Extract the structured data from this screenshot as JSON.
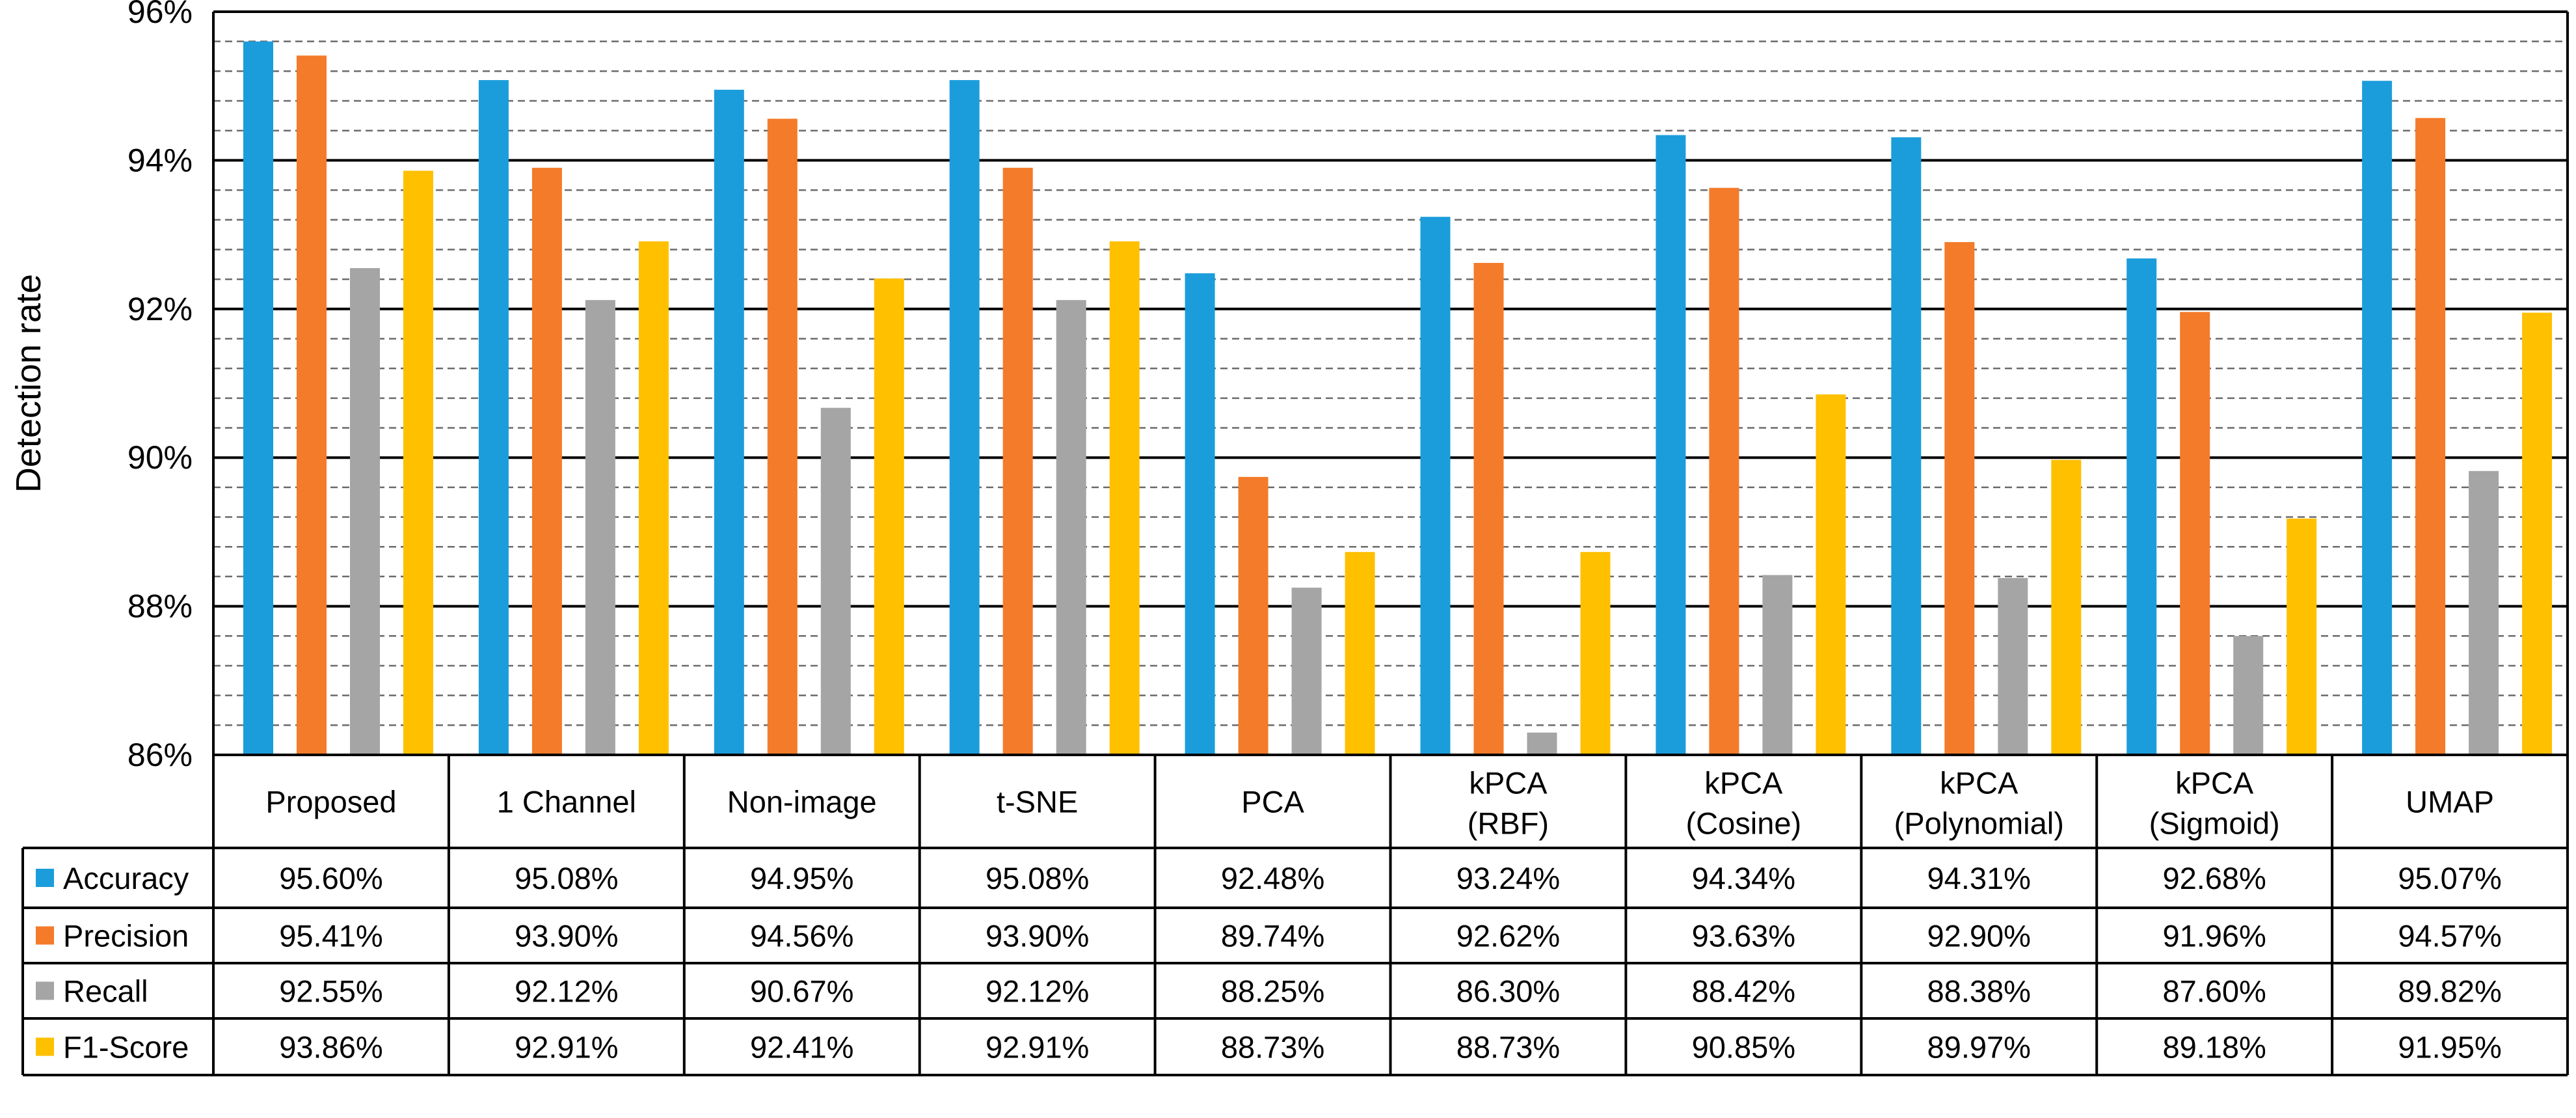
{
  "chart_data": {
    "type": "bar",
    "title": "",
    "xlabel": "",
    "ylabel": "Detection rate",
    "ylim": [
      86,
      96
    ],
    "yticks": [
      86,
      88,
      90,
      92,
      94,
      96
    ],
    "ytick_labels": [
      "86%",
      "88%",
      "90%",
      "92%",
      "94%",
      "96%"
    ],
    "minor_gridline_step": 0.4,
    "grid": true,
    "legend": "embedded data table below the plot",
    "categories": [
      [
        "Proposed"
      ],
      [
        "1 Channel"
      ],
      [
        "Non-image"
      ],
      [
        "t-SNE"
      ],
      [
        "PCA"
      ],
      [
        "kPCA",
        "(RBF)"
      ],
      [
        "kPCA",
        "(Cosine)"
      ],
      [
        "kPCA",
        "(Polynomial)"
      ],
      [
        "kPCA",
        "(Sigmoid)"
      ],
      [
        "UMAP"
      ]
    ],
    "series": [
      {
        "name": "Accuracy",
        "color": "#1B9DDB",
        "values": [
          95.6,
          95.08,
          94.95,
          95.08,
          92.48,
          93.24,
          94.34,
          94.31,
          92.68,
          95.07
        ],
        "labels": [
          "95.60%",
          "95.08%",
          "94.95%",
          "95.08%",
          "92.48%",
          "93.24%",
          "94.34%",
          "94.31%",
          "92.68%",
          "95.07%"
        ]
      },
      {
        "name": "Precision",
        "color": "#F47B2A",
        "values": [
          95.41,
          93.9,
          94.56,
          93.9,
          89.74,
          92.62,
          93.63,
          92.9,
          91.96,
          94.57
        ],
        "labels": [
          "95.41%",
          "93.90%",
          "94.56%",
          "93.90%",
          "89.74%",
          "92.62%",
          "93.63%",
          "92.90%",
          "91.96%",
          "94.57%"
        ]
      },
      {
        "name": "Recall",
        "color": "#A5A5A5",
        "values": [
          92.55,
          92.12,
          90.67,
          92.12,
          88.25,
          86.3,
          88.42,
          88.38,
          87.6,
          89.82
        ],
        "labels": [
          "92.55%",
          "92.12%",
          "90.67%",
          "92.12%",
          "88.25%",
          "86.30%",
          "88.42%",
          "88.38%",
          "87.60%",
          "89.82%"
        ]
      },
      {
        "name": "F1-Score",
        "color": "#FFC000",
        "values": [
          93.86,
          92.91,
          92.41,
          92.91,
          88.73,
          88.73,
          90.85,
          89.97,
          89.18,
          91.95
        ],
        "labels": [
          "93.86%",
          "92.91%",
          "92.41%",
          "92.91%",
          "88.73%",
          "88.73%",
          "90.85%",
          "89.97%",
          "89.18%",
          "91.95%"
        ]
      }
    ]
  }
}
